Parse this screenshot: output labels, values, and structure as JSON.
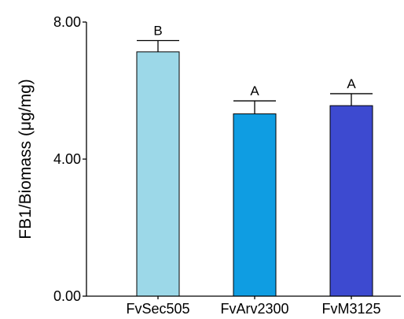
{
  "chart_data": {
    "type": "bar",
    "title": "",
    "xlabel": "",
    "ylabel": "FB1/Biomass (μg/mg)",
    "ylim": [
      0,
      8
    ],
    "yticks": [
      {
        "value": 0,
        "label": "0.00"
      },
      {
        "value": 4,
        "label": "4.00"
      },
      {
        "value": 8,
        "label": "8.00"
      }
    ],
    "categories": [
      "FvSec505",
      "FvArv2300",
      "FvM3125"
    ],
    "values": [
      7.13,
      5.32,
      5.56
    ],
    "errors": [
      0.33,
      0.38,
      0.35
    ],
    "significance": [
      "B",
      "A",
      "A"
    ],
    "colors": [
      "#9cd8e8",
      "#0f9de2",
      "#3d4ad0"
    ],
    "grid": false,
    "legend": "none"
  }
}
